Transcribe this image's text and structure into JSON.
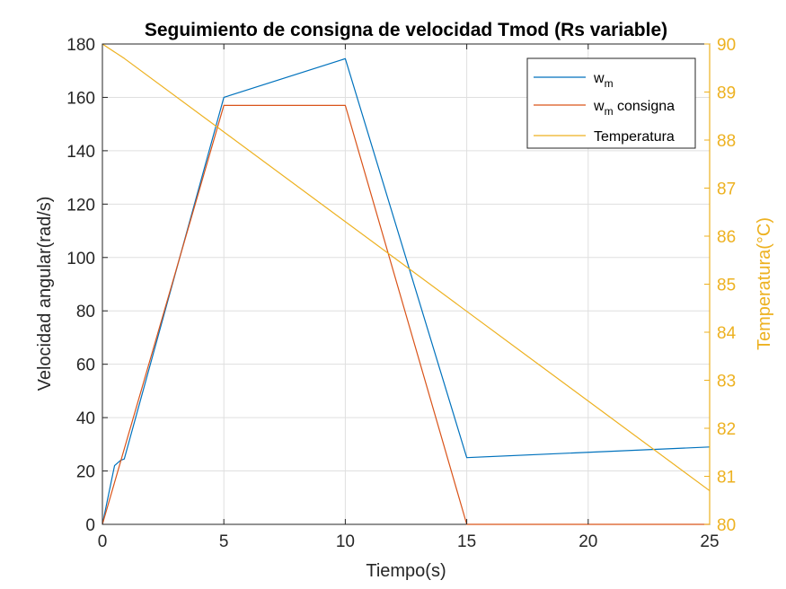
{
  "chart_data": {
    "type": "line",
    "title": "Seguimiento de consigna de velocidad Tmod (Rs variable)",
    "xlabel": "Tiempo(s)",
    "ylabel": "Velocidad angular(rad/s)",
    "y2label": "Temperatura(°C)",
    "xlim": [
      0,
      25
    ],
    "ylim": [
      0,
      180
    ],
    "y2lim": [
      80,
      90
    ],
    "xticks": [
      "0",
      "5",
      "10",
      "15",
      "20",
      "25"
    ],
    "yticks": [
      "0",
      "20",
      "40",
      "60",
      "80",
      "100",
      "120",
      "140",
      "160",
      "180"
    ],
    "y2ticks": [
      "80",
      "81",
      "82",
      "83",
      "84",
      "85",
      "86",
      "87",
      "88",
      "89",
      "90"
    ],
    "grid": true,
    "legend_position": "top-right",
    "series": [
      {
        "name": "w",
        "name_subscript": "m",
        "name_suffix": "",
        "axis": "left",
        "color": "#0072BD",
        "x": [
          0,
          0.5,
          0.75,
          0.9,
          5,
          10,
          15,
          25
        ],
        "y": [
          0,
          22,
          24,
          24.5,
          160,
          174.5,
          25,
          29
        ]
      },
      {
        "name": "w",
        "name_subscript": "m",
        "name_suffix": " consigna",
        "axis": "left",
        "color": "#D95319",
        "x": [
          0,
          5,
          10,
          15,
          25
        ],
        "y": [
          0,
          157,
          157,
          0,
          0
        ]
      },
      {
        "name": "Temperatura",
        "name_subscript": "",
        "name_suffix": "",
        "axis": "right",
        "color": "#EDB120",
        "x": [
          0,
          0.9,
          25
        ],
        "y": [
          90,
          89.7,
          80.7
        ]
      }
    ]
  }
}
